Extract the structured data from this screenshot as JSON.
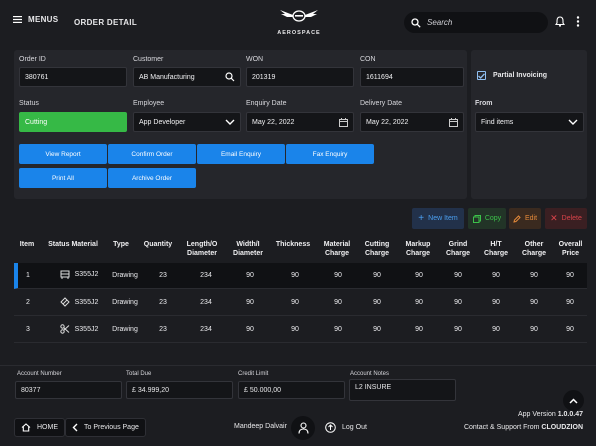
{
  "header": {
    "menus_label": "MENUS",
    "order_detail_label": "ORDER DETAIL",
    "logo_text": "AEROSPACE",
    "search_placeholder": "Search"
  },
  "form": {
    "order_id": {
      "label": "Order ID",
      "value": "380761"
    },
    "customer": {
      "label": "Customer",
      "value": "AB Manufacturing"
    },
    "won": {
      "label": "WON",
      "value": "201319"
    },
    "con": {
      "label": "CON",
      "value": "1611694"
    },
    "status": {
      "label": "Status",
      "value": "Cutting"
    },
    "employee": {
      "label": "Employee",
      "value": "App Developer"
    },
    "enquiry_date": {
      "label": "Enquiry Date",
      "value": "May 22, 2022"
    },
    "delivery_date": {
      "label": "Delivery Date",
      "value": "May 22, 2022"
    }
  },
  "buttons": {
    "view_report": "View Report",
    "confirm_order": "Confirm Order",
    "email_enquiry": "Email Enquiry",
    "fax_enquiry": "Fax Enquiry",
    "print_all": "Print All",
    "archive_order": "Archive Order"
  },
  "right_panel": {
    "partial_invoicing": "Partial Invoicing",
    "from_label": "From",
    "find_items": "Find items"
  },
  "actions": {
    "new_item": "New Item",
    "copy": "Copy",
    "edit": "Edit",
    "delete": "Delete"
  },
  "table": {
    "headers": [
      [
        "Item",
        ""
      ],
      [
        "Status",
        "Material"
      ],
      [
        "Type",
        ""
      ],
      [
        "Quantity",
        ""
      ],
      [
        "Length/O",
        "Diameter"
      ],
      [
        "Width/I",
        "Diameter"
      ],
      [
        "Thickness",
        ""
      ],
      [
        "Material",
        "Charge"
      ],
      [
        "Cutting",
        "Charge"
      ],
      [
        "Markup",
        "Charge"
      ],
      [
        "Grind",
        "Charge"
      ],
      [
        "H/T",
        "Charge"
      ],
      [
        "Other",
        "Charge"
      ],
      [
        "Overall",
        "Price"
      ]
    ],
    "rows": [
      {
        "item": "1",
        "material": "S355J2",
        "type": "Drawing",
        "quantity": "23",
        "length": "234",
        "width": "90",
        "thickness": "90",
        "material_charge": "90",
        "cutting_charge": "90",
        "markup_charge": "90",
        "grind_charge": "90",
        "ht_charge": "90",
        "other_charge": "90",
        "overall_price": "90"
      },
      {
        "item": "2",
        "material": "S355J2",
        "type": "Drawing",
        "quantity": "23",
        "length": "234",
        "width": "90",
        "thickness": "90",
        "material_charge": "90",
        "cutting_charge": "90",
        "markup_charge": "90",
        "grind_charge": "90",
        "ht_charge": "90",
        "other_charge": "90",
        "overall_price": "90"
      },
      {
        "item": "3",
        "material": "S355J2",
        "type": "Drawing",
        "quantity": "23",
        "length": "234",
        "width": "90",
        "thickness": "90",
        "material_charge": "90",
        "cutting_charge": "90",
        "markup_charge": "90",
        "grind_charge": "90",
        "ht_charge": "90",
        "other_charge": "90",
        "overall_price": "90"
      }
    ]
  },
  "account": {
    "number": {
      "label": "Account Number",
      "value": "80377"
    },
    "total_due": {
      "label": "Total Due",
      "value": "£ 34.999,20"
    },
    "credit_limit": {
      "label": "Credit Limit",
      "value": "£ 50.000,00"
    },
    "notes": {
      "label": "Account Notes",
      "value": "L2 INSURE"
    }
  },
  "footer": {
    "home": "HOME",
    "previous": "To Previous Page",
    "user": "Mandeep Dalvair",
    "logout": "Log Out",
    "app_version_label": "App Version",
    "app_version": "1.0.0.47",
    "support_label": "Contact & Support From",
    "support_company": "CLOUDZION"
  },
  "colors": {
    "accent": "#1a84ea",
    "status_green": "#36b946",
    "copy_green": "#3cc24a",
    "edit_orange": "#e58a3a",
    "delete_red": "#d9434a"
  }
}
